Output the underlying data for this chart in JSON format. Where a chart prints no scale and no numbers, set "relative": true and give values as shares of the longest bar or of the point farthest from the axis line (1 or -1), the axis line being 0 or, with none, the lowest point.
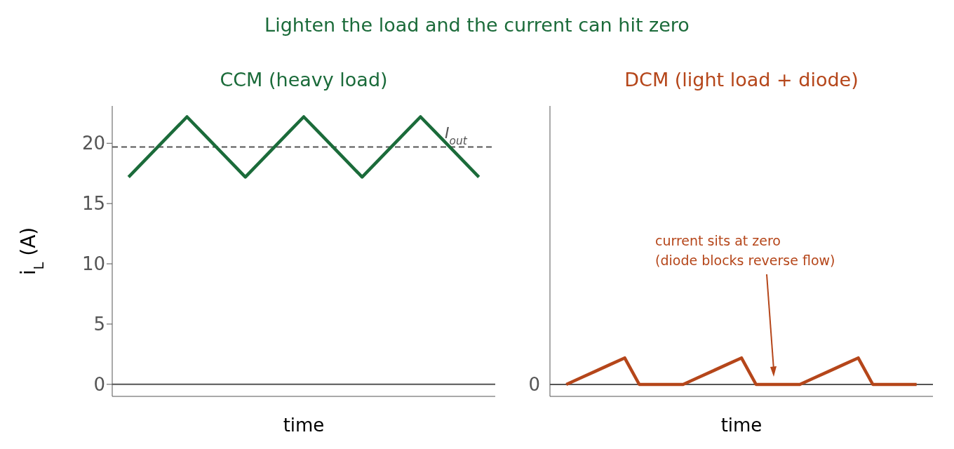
{
  "chart_data": [
    {
      "type": "line",
      "title": "CCM (heavy load)",
      "xlabel": "time",
      "ylabel": "i$_{L}$ (A)",
      "annotations": [
        "Lighten the load and the current can hit zero"
      ],
      "categories": [
        null,
        null,
        null,
        null,
        null,
        null,
        null,
        null,
        null,
        null,
        null,
        null,
        null,
        null,
        null,
        null,
        null,
        null,
        null,
        null,
        null,
        null,
        null,
        null,
        null
      ],
      "series": [
        {
          "color": "#1b6b3a",
          "values": [
            17.2,
            18.45,
            19.7,
            20.95,
            22.2,
            20.95,
            19.7,
            18.45,
            17.2,
            18.45,
            19.7,
            20.95,
            22.2,
            20.95,
            19.7,
            18.45,
            17.2,
            18.45,
            19.7,
            20.95,
            22.2,
            20.95,
            19.7,
            18.45,
            17.2
          ]
        }
      ],
      "ylim": [
        -1,
        23.1
      ],
      "yticks": [
        0,
        5,
        10,
        15,
        20
      ],
      "tick_labels": "y",
      "grid": false,
      "legend": false,
      "marker": "none",
      "line_style": "solid",
      "ref_lines": [
        {
          "axis": "y",
          "value": 19.7,
          "label": "I$_{out}$",
          "color": "#555555",
          "line_style": "dashed"
        },
        {
          "axis": "y",
          "value": 0,
          "color": "#555555",
          "line_style": "solid"
        }
      ]
    },
    {
      "type": "line",
      "title": "DCM (light load + diode)",
      "xlabel": "time",
      "relative": true,
      "categories": [
        null,
        null,
        null,
        null,
        null,
        null,
        null,
        null,
        null,
        null,
        null,
        null,
        null,
        null,
        null,
        null,
        null,
        null,
        null,
        null,
        null,
        null,
        null,
        null,
        null
      ],
      "series": [
        {
          "color": "#b5461a",
          "values": [
            0,
            0.25,
            0.5,
            0.75,
            1,
            0,
            0,
            0,
            0,
            0.25,
            0.5,
            0.75,
            1,
            0,
            0,
            0,
            0,
            0.25,
            0.5,
            0.75,
            1,
            0,
            0,
            0,
            0
          ]
        }
      ],
      "tick_labels": false,
      "grid": false,
      "legend": false,
      "marker": "none",
      "line_style": "solid",
      "ref_lines": [
        {
          "axis": "y",
          "value": 0,
          "color": "#555555",
          "line_style": "solid"
        }
      ],
      "annotations": [
        "0",
        "current sits at zero\n(diode blocks reverse flow)"
      ]
    }
  ]
}
